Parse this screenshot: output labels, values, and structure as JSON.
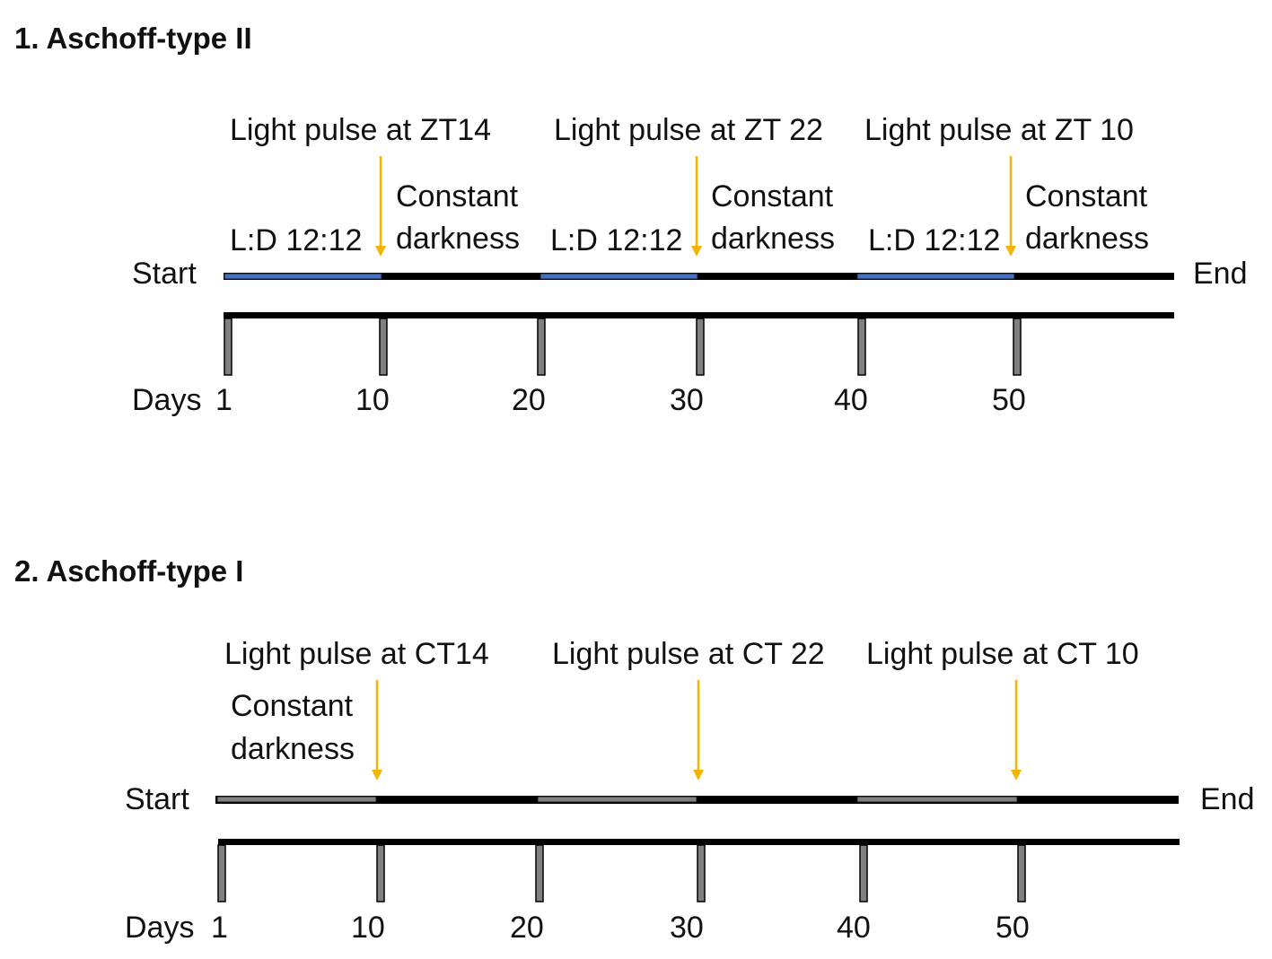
{
  "colors": {
    "light_segment": "#4472C4",
    "grey_segment": "#808080",
    "arrow": "#F5B400",
    "dark": "#000000"
  },
  "panels": [
    {
      "heading": "1. Aschoff-type II",
      "start_label": "Start",
      "end_label": "End",
      "days_label": "Days",
      "day_ticks": [
        "1",
        "10",
        "20",
        "30",
        "40",
        "50"
      ],
      "segment_style": "light",
      "pulses": [
        {
          "label": "Light pulse at ZT14",
          "entrainment": "L:D 12:12",
          "after": [
            "Constant",
            "darkness"
          ]
        },
        {
          "label": "Light pulse at ZT 22",
          "entrainment": "L:D 12:12",
          "after": [
            "Constant",
            "darkness"
          ]
        },
        {
          "label": "Light pulse at ZT 10",
          "entrainment": "L:D 12:12",
          "after": [
            "Constant",
            "darkness"
          ]
        }
      ]
    },
    {
      "heading": "2. Aschoff-type I",
      "start_label": "Start",
      "end_label": "End",
      "days_label": "Days",
      "day_ticks": [
        "1",
        "10",
        "20",
        "30",
        "40",
        "50"
      ],
      "segment_style": "grey",
      "intro": [
        "Constant",
        "darkness"
      ],
      "pulses": [
        {
          "label": "Light pulse at CT14"
        },
        {
          "label": "Light pulse at CT 22"
        },
        {
          "label": "Light pulse at CT 10"
        }
      ]
    }
  ]
}
